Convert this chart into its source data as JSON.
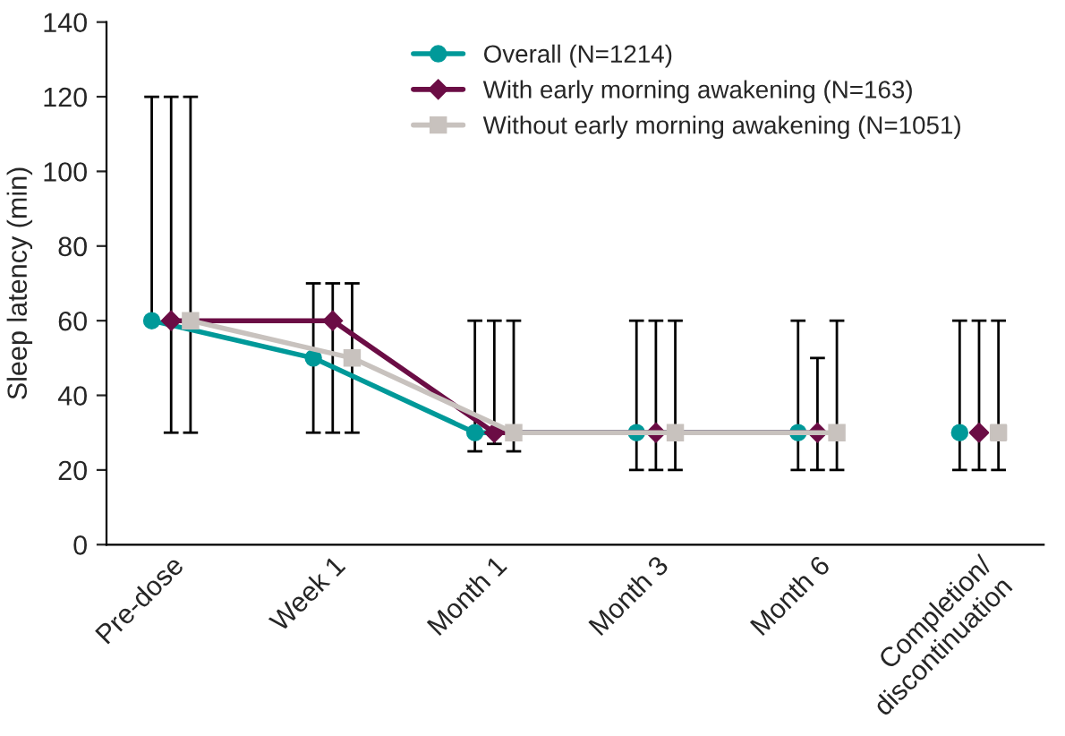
{
  "chart_data": {
    "type": "line",
    "ylabel": "Sleep latency (min)",
    "categories": [
      "Pre-dose",
      "Week 1",
      "Month 1",
      "Month 3",
      "Month 6",
      "Completion/\ndiscontinuation"
    ],
    "ylim": [
      0,
      140
    ],
    "yticks": [
      0,
      20,
      40,
      60,
      80,
      100,
      120,
      140
    ],
    "grid": false,
    "legend": "top",
    "series": [
      {
        "name": "Overall (N=1214)",
        "color": "#009999",
        "marker": "circle",
        "values": [
          60,
          50,
          30,
          30,
          30,
          null
        ],
        "errors": [
          [
            60,
            120
          ],
          [
            30,
            70
          ],
          [
            25,
            60
          ],
          [
            20,
            60
          ],
          [
            20,
            60
          ],
          null
        ]
      },
      {
        "name": "With early morning awakening (N=163)",
        "color": "#6b0d45",
        "marker": "diamond",
        "values": [
          60,
          60,
          30,
          30,
          30,
          null
        ],
        "errors": [
          [
            30,
            120
          ],
          [
            30,
            70
          ],
          [
            27,
            60
          ],
          [
            20,
            60
          ],
          [
            20,
            50
          ],
          null
        ]
      },
      {
        "name": "Without early morning awakening (N=1051)",
        "color": "#c8c2be",
        "marker": "square",
        "values": [
          60,
          50,
          30,
          30,
          30,
          null
        ],
        "errors": [
          [
            30,
            120
          ],
          [
            30,
            70
          ],
          [
            25,
            60
          ],
          [
            20,
            60
          ],
          [
            20,
            60
          ],
          null
        ]
      },
      {
        "type": "scatter",
        "color": "#009999",
        "marker": "circle",
        "values": [
          null,
          null,
          null,
          null,
          null,
          30
        ],
        "errors": [
          null,
          null,
          null,
          null,
          null,
          [
            20,
            60
          ]
        ]
      },
      {
        "type": "scatter",
        "color": "#6b0d45",
        "marker": "diamond",
        "values": [
          null,
          null,
          null,
          null,
          null,
          30
        ],
        "errors": [
          null,
          null,
          null,
          null,
          null,
          [
            20,
            60
          ]
        ]
      },
      {
        "type": "scatter",
        "color": "#c8c2be",
        "marker": "square",
        "values": [
          null,
          null,
          null,
          null,
          null,
          30
        ],
        "errors": [
          null,
          null,
          null,
          null,
          null,
          [
            20,
            60
          ]
        ]
      }
    ]
  }
}
